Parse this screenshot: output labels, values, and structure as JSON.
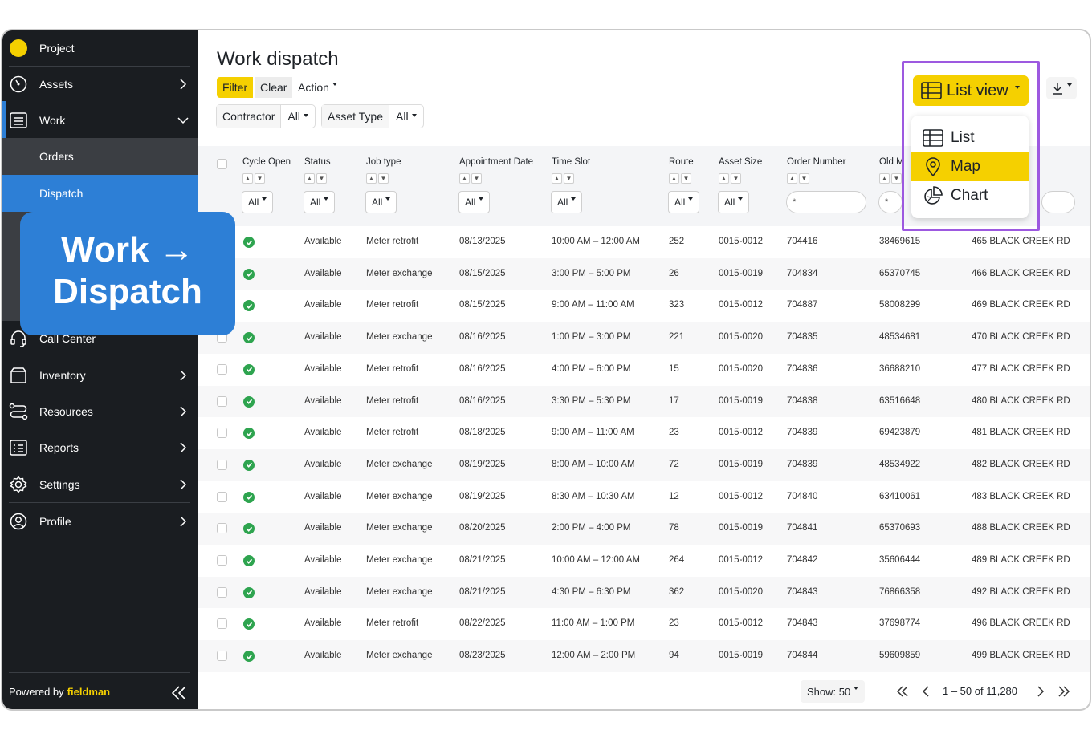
{
  "sidebar": {
    "project": "Project",
    "assets": "Assets",
    "work": "Work",
    "orders": "Orders",
    "dispatch": "Dispatch",
    "call_center": "Call Center",
    "inventory": "Inventory",
    "resources": "Resources",
    "reports": "Reports",
    "settings": "Settings",
    "profile": "Profile",
    "powered_by": "Powered by",
    "brand": "fieldman"
  },
  "callout": {
    "line1": "Work →",
    "line2": "Dispatch"
  },
  "page": {
    "title": "Work dispatch",
    "filter": "Filter",
    "clear": "Clear",
    "action": "Action",
    "contractor_label": "Contractor",
    "contractor_value": "All",
    "asset_type_label": "Asset Type",
    "asset_type_value": "All",
    "view_button": "List view",
    "view_options": [
      "List",
      "Map",
      "Chart"
    ],
    "selected_view": "Map"
  },
  "table": {
    "columns": [
      "Cycle Open",
      "Status",
      "Job type",
      "Appointment Date",
      "Time Slot",
      "Route",
      "Asset Size",
      "Order Number",
      "Old M"
    ],
    "filter_all": "All",
    "input_placeholder": "*",
    "rows": [
      [
        "Available",
        "Meter retrofit",
        "08/13/2025",
        "10:00 AM – 12:00 AM",
        "252",
        "0015-0012",
        "704416",
        "38469615",
        "465 BLACK CREEK RD"
      ],
      [
        "Available",
        "Meter exchange",
        "08/15/2025",
        "3:00 PM – 5:00 PM",
        "26",
        "0015-0019",
        "704834",
        "65370745",
        "466 BLACK CREEK RD"
      ],
      [
        "Available",
        "Meter retrofit",
        "08/15/2025",
        "9:00 AM – 11:00 AM",
        "323",
        "0015-0012",
        "704887",
        "58008299",
        "469 BLACK CREEK RD"
      ],
      [
        "Available",
        "Meter exchange",
        "08/16/2025",
        "1:00 PM – 3:00 PM",
        "221",
        "0015-0020",
        "704835",
        "48534681",
        "470 BLACK CREEK RD"
      ],
      [
        "Available",
        "Meter retrofit",
        "08/16/2025",
        "4:00 PM – 6:00 PM",
        "15",
        "0015-0020",
        "704836",
        "36688210",
        "477 BLACK CREEK RD"
      ],
      [
        "Available",
        "Meter retrofit",
        "08/16/2025",
        "3:30 PM – 5:30 PM",
        "17",
        "0015-0019",
        "704838",
        "63516648",
        "480 BLACK CREEK RD"
      ],
      [
        "Available",
        "Meter retrofit",
        "08/18/2025",
        "9:00 AM – 11:00 AM",
        "23",
        "0015-0012",
        "704839",
        "69423879",
        "481 BLACK CREEK RD"
      ],
      [
        "Available",
        "Meter exchange",
        "08/19/2025",
        "8:00 AM – 10:00 AM",
        "72",
        "0015-0019",
        "704839",
        "48534922",
        "482 BLACK CREEK RD"
      ],
      [
        "Available",
        "Meter exchange",
        "08/19/2025",
        "8:30 AM – 10:30 AM",
        "12",
        "0015-0012",
        "704840",
        "63410061",
        "483 BLACK CREEK RD"
      ],
      [
        "Available",
        "Meter exchange",
        "08/20/2025",
        "2:00 PM – 4:00 PM",
        "78",
        "0015-0019",
        "704841",
        "65370693",
        "488 BLACK CREEK RD"
      ],
      [
        "Available",
        "Meter exchange",
        "08/21/2025",
        "10:00 AM – 12:00 AM",
        "264",
        "0015-0012",
        "704842",
        "35606444",
        "489 BLACK CREEK RD"
      ],
      [
        "Available",
        "Meter exchange",
        "08/21/2025",
        "4:30 PM – 6:30 PM",
        "362",
        "0015-0020",
        "704843",
        "76866358",
        "492 BLACK CREEK RD"
      ],
      [
        "Available",
        "Meter retrofit",
        "08/22/2025",
        "11:00 AM – 1:00 PM",
        "23",
        "0015-0012",
        "704843",
        "37698774",
        "496 BLACK CREEK RD"
      ],
      [
        "Available",
        "Meter exchange",
        "08/23/2025",
        "12:00 AM – 2:00 PM",
        "94",
        "0015-0019",
        "704844",
        "59609859",
        "499 BLACK CREEK RD"
      ]
    ]
  },
  "footer": {
    "show": "Show: 50",
    "range": "1 – 50 of 11,280"
  },
  "colors": {
    "accent_yellow": "#f5d000",
    "sidebar_bg": "#1a1d21",
    "active_blue": "#2d7fd6",
    "highlight_purple": "#9d59e0",
    "status_green": "#2ea44f"
  }
}
